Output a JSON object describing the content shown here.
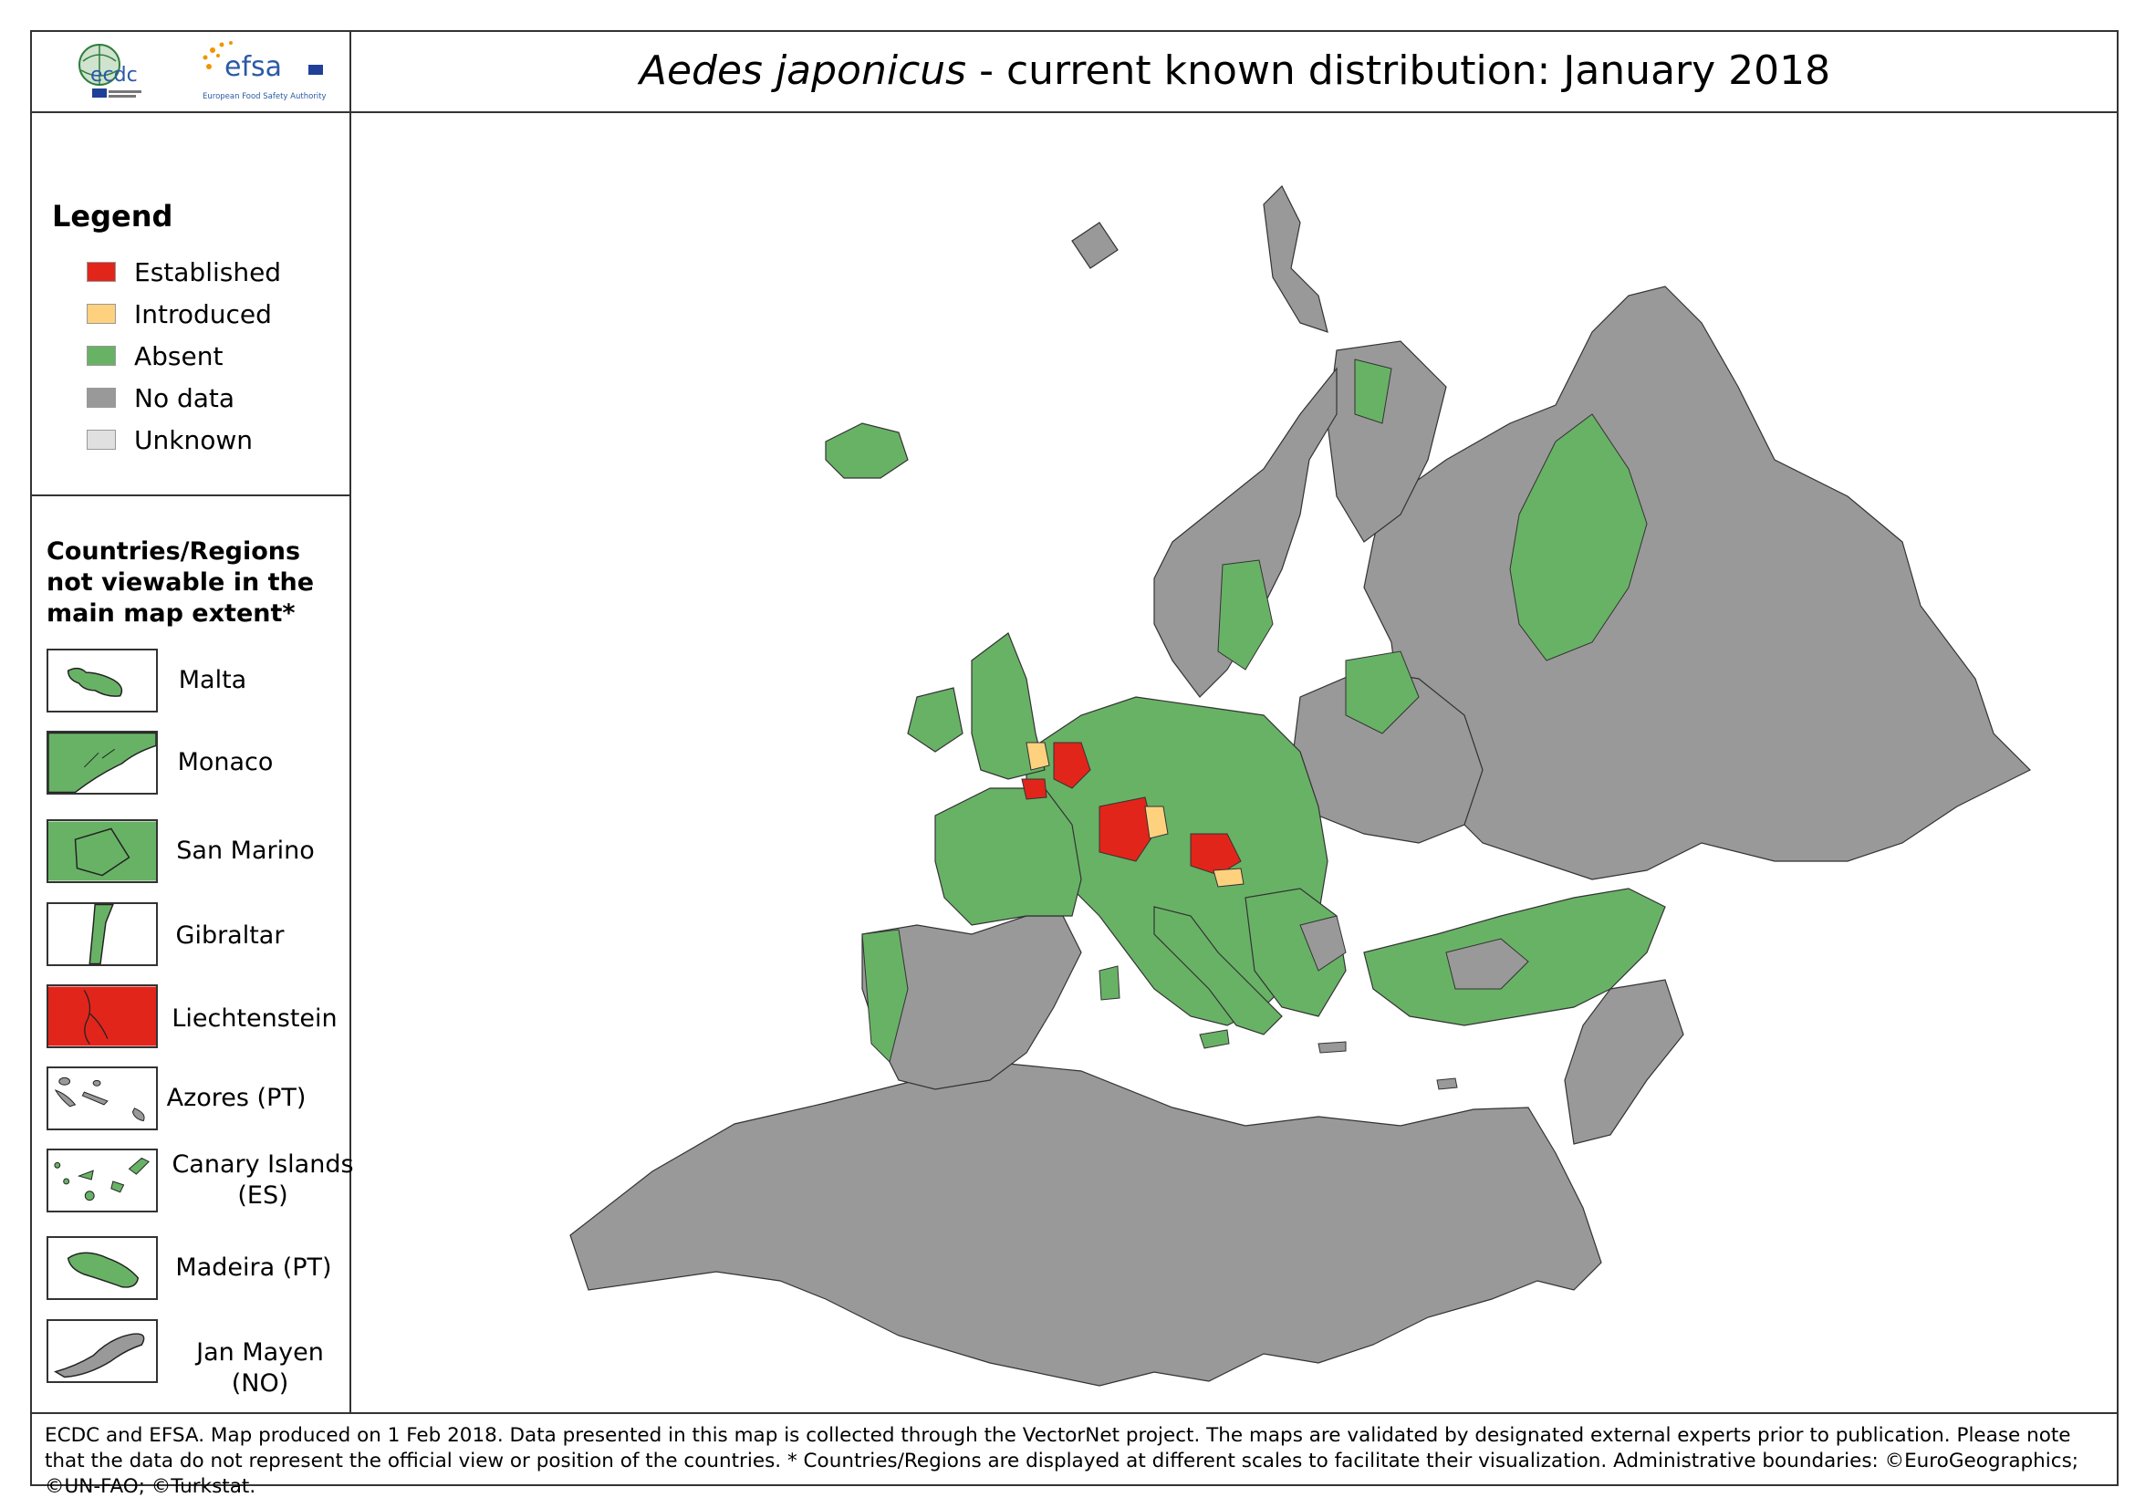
{
  "title": {
    "species": "Aedes japonicus",
    "rest": " - current known distribution: January 2018"
  },
  "logos": {
    "ecdc": "ecdc",
    "efsa": "efsa",
    "efsa_subtitle": "European Food Safety Authority"
  },
  "legend": {
    "title": "Legend",
    "items": [
      {
        "label": "Established",
        "color": "#e1251b"
      },
      {
        "label": "Introduced",
        "color": "#fdd17e"
      },
      {
        "label": "Absent",
        "color": "#68b266"
      },
      {
        "label": "No data",
        "color": "#999999"
      },
      {
        "label": "Unknown",
        "color": "#e0e0e0"
      }
    ]
  },
  "regions": {
    "title": "Countries/Regions not viewable in the main map extent*",
    "items": [
      {
        "label": "Malta",
        "status": "Absent"
      },
      {
        "label": "Monaco",
        "status": "Absent"
      },
      {
        "label": "San Marino",
        "status": "Absent"
      },
      {
        "label": "Gibraltar",
        "status": "Absent"
      },
      {
        "label": "Liechtenstein",
        "status": "Established"
      },
      {
        "label": "Azores (PT)",
        "status": "No data"
      },
      {
        "label": "Canary Islands (ES)",
        "status": "Absent"
      },
      {
        "label": "Madeira (PT)",
        "status": "Absent"
      },
      {
        "label": "Jan Mayen (NO)",
        "status": "No data"
      }
    ]
  },
  "footer": {
    "text": "ECDC and EFSA. Map produced on 1 Feb 2018. Data presented in this map is collected through the VectorNet project. The maps are validated by designated external experts prior to publication. Please note that the data do not represent the official view or position of the countries. * Countries/Regions are displayed at different scales to facilitate their visualization. Administrative boundaries: ©EuroGeographics; ©UN-FAO; ©Turkstat."
  },
  "colors": {
    "established": "#e1251b",
    "introduced": "#fdd17e",
    "absent": "#68b266",
    "no_data": "#999999",
    "unknown": "#e0e0e0"
  }
}
